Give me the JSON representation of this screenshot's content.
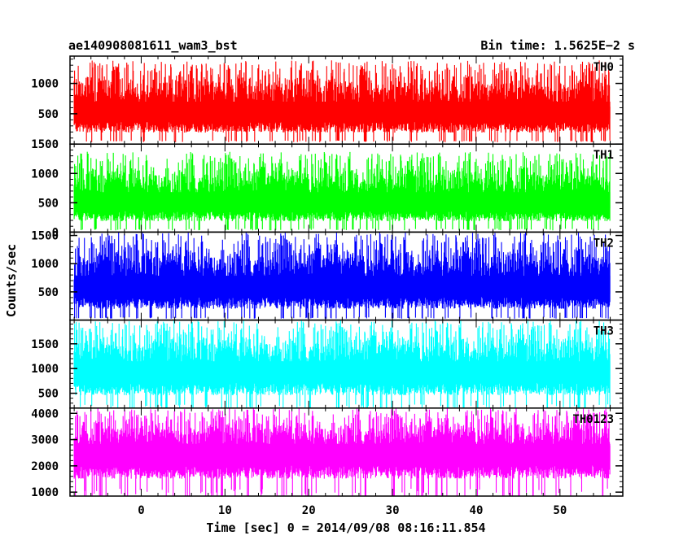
{
  "chart_data": {
    "type": "line",
    "title_left": "ae140908081611_wam3_bst",
    "title_right": "Bin time: 1.5625E−2 s",
    "xlabel": "Time [sec] 0 = 2014/09/08 08:16:11.854",
    "ylabel": "Counts/sec",
    "xlim": [
      -8.5,
      57.5
    ],
    "x_data_range": [
      -8,
      56
    ],
    "x_ticks": [
      0,
      10,
      20,
      30,
      40,
      50
    ],
    "x_tick_labels": [
      "0",
      "10",
      "20",
      "30",
      "40",
      "50"
    ],
    "grid": false,
    "panels": [
      {
        "name": "TH0",
        "color": "#ff0000",
        "ylim": [
          0,
          1450
        ],
        "y_ticks": [
          500,
          1000
        ],
        "y_tick_labels": [
          "500",
          "1000"
        ],
        "mean": 580,
        "low": 60,
        "high": 1380
      },
      {
        "name": "TH1",
        "color": "#00ff00",
        "ylim": [
          0,
          1500
        ],
        "y_ticks": [
          0,
          500,
          1000,
          1500
        ],
        "y_tick_labels": [
          "0",
          "500",
          "1000",
          "1500"
        ],
        "mean": 560,
        "low": 60,
        "high": 1370
      },
      {
        "name": "TH2",
        "color": "#0000ff",
        "ylim": [
          0,
          1560
        ],
        "y_ticks": [
          500,
          1000,
          1500
        ],
        "y_tick_labels": [
          "500",
          "1000",
          "1500"
        ],
        "mean": 650,
        "low": 50,
        "high": 1560
      },
      {
        "name": "TH3",
        "color": "#00ffff",
        "ylim": [
          200,
          1980
        ],
        "y_ticks": [
          500,
          1000,
          1500
        ],
        "y_tick_labels": [
          "500",
          "1000",
          "1500"
        ],
        "mean": 1000,
        "low": 280,
        "high": 1980
      },
      {
        "name": "TH0123",
        "color": "#ff00ff",
        "ylim": [
          850,
          4200
        ],
        "y_ticks": [
          1000,
          2000,
          3000,
          4000
        ],
        "y_tick_labels": [
          "1000",
          "2000",
          "3000",
          "4000"
        ],
        "mean": 2600,
        "low": 1150,
        "high": 4200
      }
    ]
  }
}
